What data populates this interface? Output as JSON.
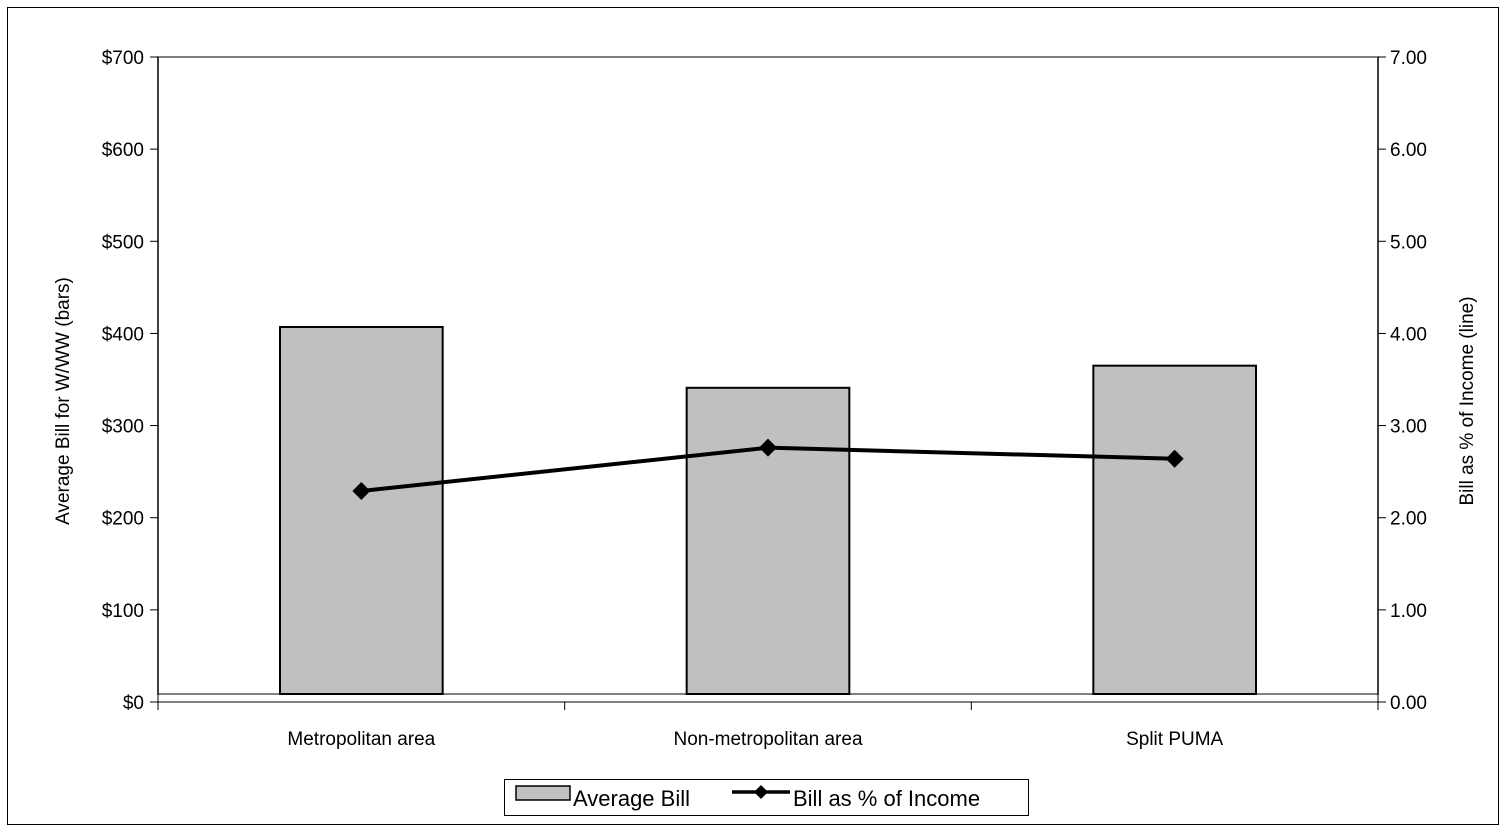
{
  "chart_data": {
    "type": "bar",
    "categories": [
      "Metropolitan area",
      "Non-metropolitan area",
      "Split PUMA"
    ],
    "series": [
      {
        "name": "Average Bill",
        "kind": "bar",
        "axis": "left",
        "values": [
          407,
          341,
          365
        ],
        "color": "#c0c0c0"
      },
      {
        "name": "Bill as % of Income",
        "kind": "line",
        "axis": "right",
        "marker": "diamond",
        "values": [
          2.29,
          2.76,
          2.64
        ],
        "color": "#000000"
      }
    ],
    "ylabel": "Average Bill for W/WW (bars)",
    "y2label": "Bill as % of Income (line)",
    "ylim": [
      0,
      700
    ],
    "y2lim": [
      0,
      7
    ],
    "yticks": [
      "$0",
      "$100",
      "$200",
      "$300",
      "$400",
      "$500",
      "$600",
      "$700"
    ],
    "y2ticks": [
      "0.00",
      "1.00",
      "2.00",
      "3.00",
      "4.00",
      "5.00",
      "6.00",
      "7.00"
    ],
    "grid": false,
    "legend": "bottom-center",
    "plot_background": "#ffffff",
    "axis_frame_color": "#808080"
  }
}
